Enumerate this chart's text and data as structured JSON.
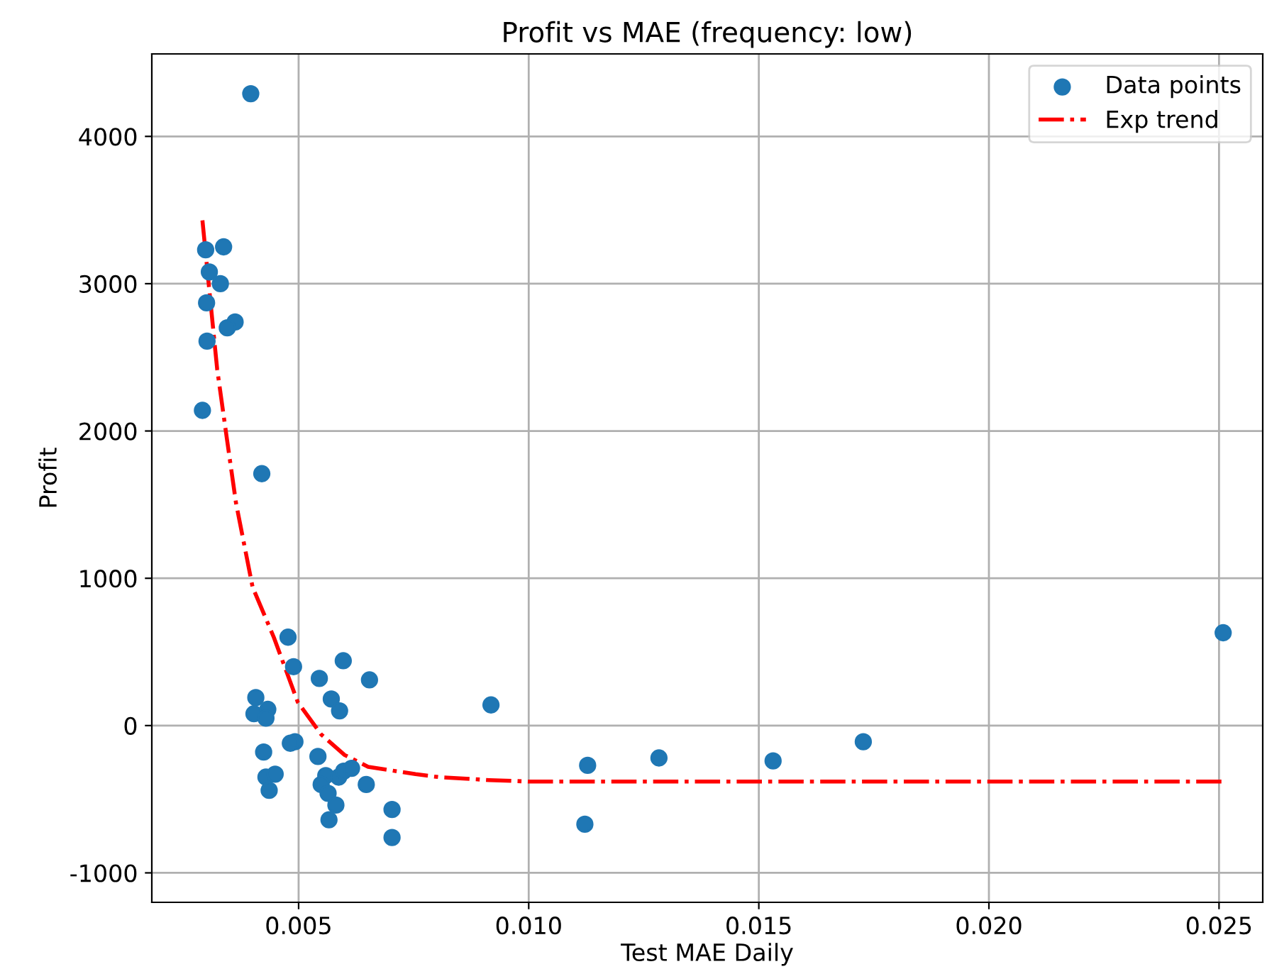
{
  "chart_data": {
    "type": "scatter",
    "title": "Profit vs MAE (frequency: low)",
    "xlabel": "Test MAE Daily",
    "ylabel": "Profit",
    "xlim": [
      0.00181,
      0.02595
    ],
    "xticks": [
      {
        "value": 0.005,
        "label": "0.005"
      },
      {
        "value": 0.01,
        "label": "0.010"
      },
      {
        "value": 0.015,
        "label": "0.015"
      },
      {
        "value": 0.02,
        "label": "0.020"
      },
      {
        "value": 0.025,
        "label": "0.025"
      }
    ],
    "ylim": [
      -1200,
      4560
    ],
    "yticks": [
      -1000,
      0,
      1000,
      2000,
      3000,
      4000
    ],
    "grid": true,
    "legend": "top right",
    "series": [
      {
        "name": "Data points",
        "type": "scatter",
        "marker": "circle",
        "color": "#1f77b4",
        "x": [
          0.00396,
          0.00298,
          0.00337,
          0.00306,
          0.0033,
          0.003,
          0.00362,
          0.00345,
          0.00301,
          0.00291,
          0.0042,
          0.00477,
          0.00489,
          0.00597,
          0.00654,
          0.00545,
          0.00571,
          0.00589,
          0.00407,
          0.00403,
          0.00433,
          0.00429,
          0.00492,
          0.00482,
          0.00424,
          0.00542,
          0.00429,
          0.00449,
          0.00436,
          0.00559,
          0.00549,
          0.00564,
          0.00587,
          0.00598,
          0.00615,
          0.00647,
          0.00581,
          0.00566,
          0.00703,
          0.00703,
          0.00918,
          0.01128,
          0.01122,
          0.01283,
          0.01531,
          0.01727,
          0.02509
        ],
        "values": [
          4290,
          3230,
          3250,
          3080,
          3000,
          2870,
          2740,
          2700,
          2610,
          2140,
          1710,
          600,
          400,
          440,
          310,
          320,
          180,
          100,
          190,
          80,
          110,
          50,
          -110,
          -120,
          -180,
          -210,
          -350,
          -330,
          -440,
          -340,
          -400,
          -460,
          -350,
          -310,
          -290,
          -400,
          -540,
          -640,
          -570,
          -760,
          140,
          -270,
          -670,
          -220,
          -240,
          -110,
          630
        ]
      },
      {
        "name": "Exp trend",
        "type": "line",
        "line_style": "dashdot",
        "color": "#ff0000",
        "x": [
          0.00291,
          0.00303,
          0.00323,
          0.00344,
          0.00364,
          0.004,
          0.00446,
          0.00498,
          0.00549,
          0.006,
          0.00651,
          0.00754,
          0.00805,
          0.00914,
          0.01,
          0.015,
          0.02,
          0.02509
        ],
        "values": [
          3430,
          3050,
          2420,
          1950,
          1510,
          940,
          600,
          160,
          -60,
          -200,
          -280,
          -330,
          -350,
          -370,
          -380,
          -380,
          -380,
          -380
        ]
      }
    ]
  }
}
